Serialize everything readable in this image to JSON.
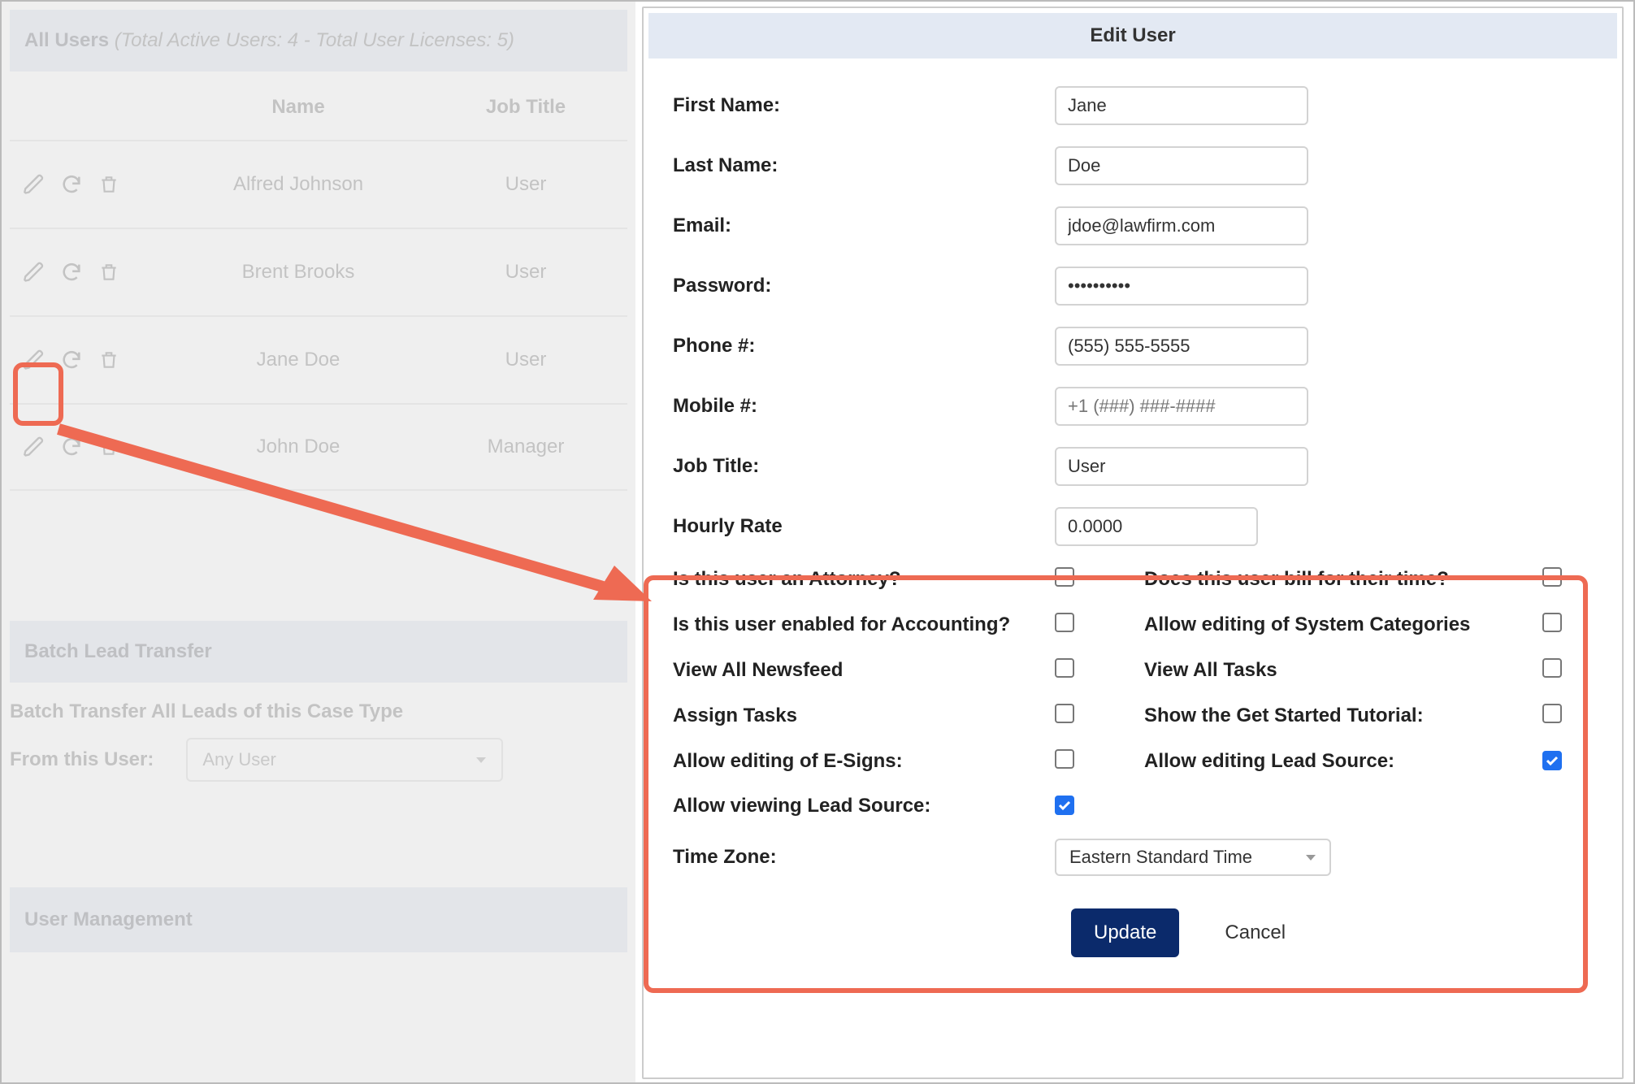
{
  "annotation": {
    "highlight_color": "#ee6a53"
  },
  "left": {
    "all_users_label": "All Users",
    "all_users_meta": "(Total Active Users: 4 - Total User Licenses: 5)",
    "table": {
      "col_name": "Name",
      "col_job": "Job Title",
      "rows": [
        {
          "name": "Alfred Johnson",
          "job": "User"
        },
        {
          "name": "Brent Brooks",
          "job": "User"
        },
        {
          "name": "Jane Doe",
          "job": "User"
        },
        {
          "name": "John Doe",
          "job": "Manager"
        }
      ]
    },
    "batch_section": "Batch Lead Transfer",
    "batch_subtitle": "Batch Transfer All Leads of this Case Type",
    "from_user_label": "From this User:",
    "from_user_value": "Any User",
    "user_mgmt_section": "User Management"
  },
  "modal": {
    "title": "Edit User",
    "fields": {
      "first_name_label": "First Name:",
      "first_name": "Jane",
      "last_name_label": "Last Name:",
      "last_name": "Doe",
      "email_label": "Email:",
      "email": "jdoe@lawfirm.com",
      "password_label": "Password:",
      "password": "••••••••••",
      "phone_label": "Phone #:",
      "phone": "(555) 555-5555",
      "mobile_label": "Mobile #:",
      "mobile_placeholder": "+1 (###) ###-####",
      "job_label": "Job Title:",
      "job": "User",
      "rate_label": "Hourly Rate",
      "rate": "0.0000"
    },
    "checks": {
      "attorney_label": "Is this user an Attorney?",
      "attorney": false,
      "bill_label": "Does this user bill for their time?",
      "bill": false,
      "accounting_label": "Is this user enabled for Accounting?",
      "accounting": false,
      "syscat_label": "Allow editing of System Categories",
      "syscat": false,
      "newsfeed_label": "View All Newsfeed",
      "newsfeed": false,
      "tasks_label": "View All Tasks",
      "tasks": false,
      "assign_label": "Assign Tasks",
      "assign": false,
      "tutorial_label": "Show the Get Started Tutorial:",
      "tutorial": false,
      "esign_label": "Allow editing of E-Signs:",
      "esign": false,
      "edit_lead_label": "Allow editing Lead Source:",
      "edit_lead": true,
      "view_lead_label": "Allow viewing Lead Source:",
      "view_lead": true
    },
    "tz_label": "Time Zone:",
    "tz_value": "Eastern Standard Time",
    "update_label": "Update",
    "cancel_label": "Cancel"
  }
}
